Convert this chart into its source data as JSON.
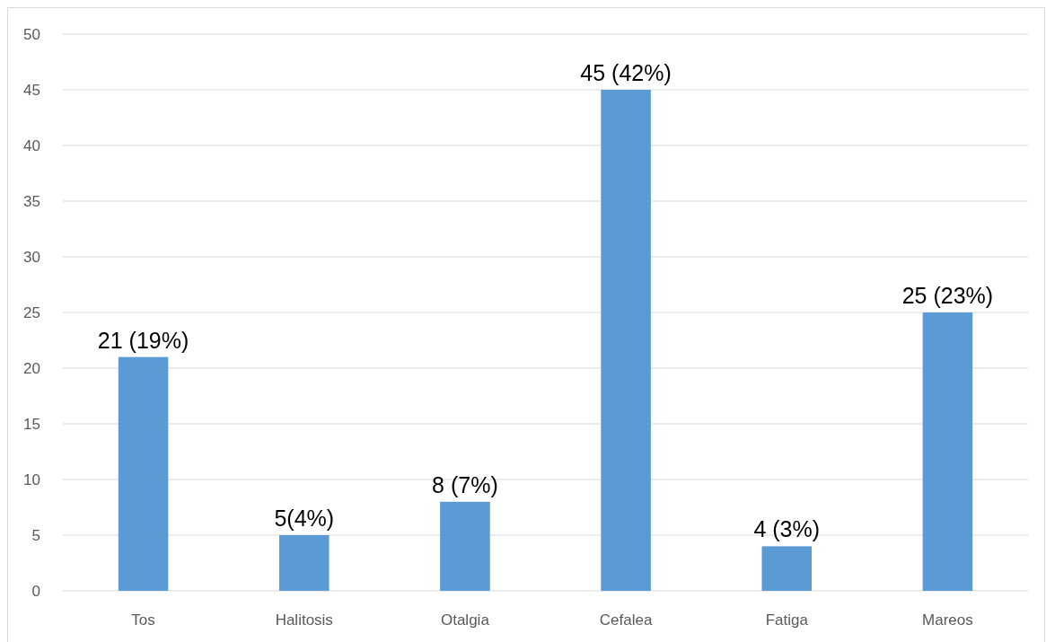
{
  "chart_data": {
    "type": "bar",
    "categories": [
      "Tos",
      "Halitosis",
      "Otalgia",
      "Cefalea",
      "Fatiga",
      "Mareos"
    ],
    "values": [
      21,
      5,
      8,
      45,
      4,
      25
    ],
    "value_labels": [
      "21 (19%)",
      "5(4%)",
      "8 (7%)",
      "45 (42%)",
      "4 (3%)",
      "25 (23%)"
    ],
    "color": "#5b9bd5",
    "ylim": [
      0,
      50
    ],
    "yticks": [
      0,
      5,
      10,
      15,
      20,
      25,
      30,
      35,
      40,
      45,
      50
    ],
    "grid": "y"
  }
}
